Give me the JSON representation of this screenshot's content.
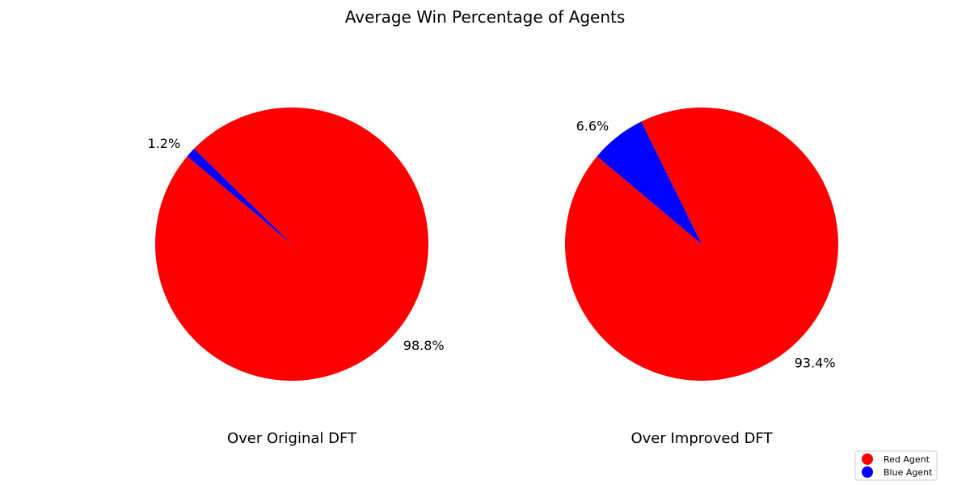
{
  "chart_data": {
    "type": "pie",
    "title": "Average Win Percentage of Agents",
    "legend": {
      "placement": "bottom-right",
      "entries": [
        {
          "label": "Red Agent",
          "color": "#ff0000"
        },
        {
          "label": "Blue Agent",
          "color": "#0000ff"
        }
      ]
    },
    "pies": [
      {
        "title": "Over Original DFT",
        "slices": [
          {
            "label": "Red Agent",
            "value": 98.8,
            "text": "98.8%",
            "color": "#ff0000"
          },
          {
            "label": "Blue Agent",
            "value": 1.2,
            "text": "1.2%",
            "color": "#0000ff"
          }
        ]
      },
      {
        "title": "Over Improved DFT",
        "slices": [
          {
            "label": "Red Agent",
            "value": 93.4,
            "text": "93.4%",
            "color": "#ff0000"
          },
          {
            "label": "Blue Agent",
            "value": 6.6,
            "text": "6.6%",
            "color": "#0000ff"
          }
        ]
      }
    ]
  }
}
